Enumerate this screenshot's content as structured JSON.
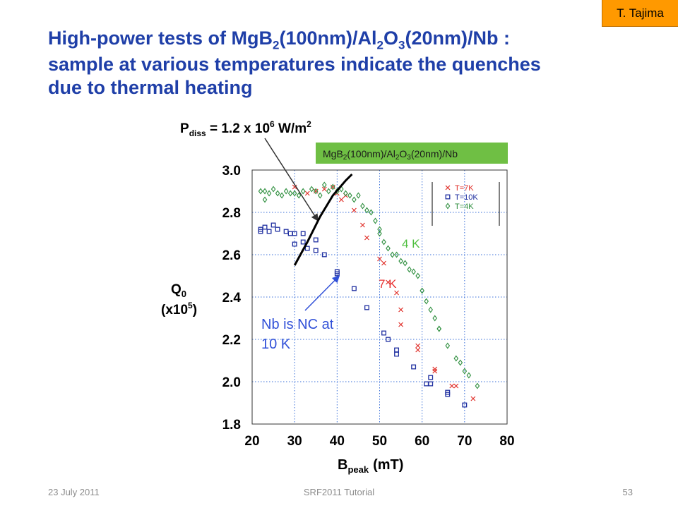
{
  "slide": {
    "author_tag": "T. Tajima",
    "title": {
      "line1_a": "High-power tests of MgB",
      "line1_sub1": "2",
      "line1_b": "(100nm)/Al",
      "line1_sub2": "2",
      "line1_c": "O",
      "line1_sub3": "3",
      "line1_d": "(20nm)/Nb :",
      "line2": "sample at various temperatures indicate the quenches",
      "line3": "due to thermal heating"
    },
    "footer": {
      "date": "23 July 2011",
      "event": "SRF2011 Tutorial",
      "page": "53"
    }
  },
  "colors": {
    "title": "#1f3fa8",
    "tag_bg": "#ff9900",
    "legend_box_bg": "#6fbf44",
    "series_7k": "#e0302a",
    "series_10k": "#1f2fa0",
    "series_4k": "#2f8f3f",
    "grid": "#3a6fd8",
    "annotation_blue": "#3050d8",
    "annotation_green": "#4fbf3f",
    "annotation_red": "#e83030"
  },
  "chart_data": {
    "type": "scatter",
    "x_range": [
      20,
      80
    ],
    "y_range": [
      1.8,
      3.0
    ],
    "x_ticks": [
      "20",
      "30",
      "40",
      "50",
      "60",
      "70",
      "80"
    ],
    "y_ticks": [
      "1.8",
      "2.0",
      "2.2",
      "2.4",
      "2.6",
      "2.8",
      "3.0"
    ],
    "grid": true,
    "xlabel": {
      "main": "B",
      "sub": "peak",
      "units": "(mT)"
    },
    "ylabel": {
      "line1_main": "Q",
      "line1_sub": "0",
      "line2_main": "(x10",
      "line2_sup": "5",
      "line2_end": ")"
    },
    "sample_label": {
      "a": "MgB",
      "a_sub": "2",
      "b": "(100nm)/Al",
      "b_sub": "2",
      "c": "O",
      "c_sub": "3",
      "d": "(20nm)/Nb"
    },
    "legend_position": "top-right",
    "series": [
      {
        "name": "T=7K",
        "marker": "x",
        "color": "#e0302a",
        "points": [
          [
            30,
            2.92
          ],
          [
            33,
            2.89
          ],
          [
            35,
            2.9
          ],
          [
            37,
            2.91
          ],
          [
            39,
            2.92
          ],
          [
            40,
            2.89
          ],
          [
            41,
            2.86
          ],
          [
            42,
            2.88
          ],
          [
            44,
            2.81
          ],
          [
            46,
            2.74
          ],
          [
            47,
            2.68
          ],
          [
            50,
            2.58
          ],
          [
            51,
            2.56
          ],
          [
            52,
            2.47
          ],
          [
            54,
            2.42
          ],
          [
            55,
            2.34
          ],
          [
            55,
            2.27
          ],
          [
            59,
            2.17
          ],
          [
            59,
            2.15
          ],
          [
            63,
            2.06
          ],
          [
            63,
            2.05
          ],
          [
            67,
            1.98
          ],
          [
            68,
            1.98
          ],
          [
            72,
            1.92
          ]
        ]
      },
      {
        "name": "T=10K",
        "marker": "square",
        "color": "#1f2fa0",
        "points": [
          [
            22,
            2.72
          ],
          [
            22,
            2.71
          ],
          [
            23,
            2.73
          ],
          [
            24,
            2.71
          ],
          [
            25,
            2.74
          ],
          [
            26,
            2.72
          ],
          [
            28,
            2.71
          ],
          [
            29,
            2.7
          ],
          [
            30,
            2.7
          ],
          [
            30,
            2.65
          ],
          [
            32,
            2.7
          ],
          [
            32,
            2.66
          ],
          [
            33,
            2.63
          ],
          [
            35,
            2.67
          ],
          [
            35,
            2.62
          ],
          [
            37,
            2.6
          ],
          [
            40,
            2.52
          ],
          [
            40,
            2.51
          ],
          [
            44,
            2.44
          ],
          [
            47,
            2.35
          ],
          [
            51,
            2.23
          ],
          [
            52,
            2.2
          ],
          [
            54,
            2.15
          ],
          [
            54,
            2.13
          ],
          [
            58,
            2.07
          ],
          [
            61,
            1.99
          ],
          [
            62,
            2.02
          ],
          [
            62,
            1.99
          ],
          [
            66,
            1.95
          ],
          [
            66,
            1.94
          ],
          [
            70,
            1.89
          ]
        ]
      },
      {
        "name": "T=4K",
        "marker": "diamond",
        "color": "#2f8f3f",
        "points": [
          [
            22,
            2.9
          ],
          [
            23,
            2.9
          ],
          [
            23,
            2.86
          ],
          [
            24,
            2.89
          ],
          [
            25,
            2.91
          ],
          [
            26,
            2.89
          ],
          [
            27,
            2.88
          ],
          [
            28,
            2.9
          ],
          [
            29,
            2.89
          ],
          [
            30,
            2.89
          ],
          [
            31,
            2.88
          ],
          [
            32,
            2.9
          ],
          [
            34,
            2.91
          ],
          [
            35,
            2.9
          ],
          [
            36,
            2.88
          ],
          [
            37,
            2.93
          ],
          [
            38,
            2.9
          ],
          [
            39,
            2.92
          ],
          [
            40,
            2.9
          ],
          [
            41,
            2.91
          ],
          [
            42,
            2.89
          ],
          [
            43,
            2.88
          ],
          [
            44,
            2.86
          ],
          [
            45,
            2.88
          ],
          [
            46,
            2.83
          ],
          [
            47,
            2.81
          ],
          [
            48,
            2.8
          ],
          [
            49,
            2.76
          ],
          [
            50,
            2.72
          ],
          [
            50,
            2.7
          ],
          [
            51,
            2.66
          ],
          [
            52,
            2.63
          ],
          [
            53,
            2.6
          ],
          [
            54,
            2.6
          ],
          [
            55,
            2.57
          ],
          [
            56,
            2.56
          ],
          [
            57,
            2.53
          ],
          [
            58,
            2.52
          ],
          [
            59,
            2.5
          ],
          [
            60,
            2.43
          ],
          [
            61,
            2.38
          ],
          [
            62,
            2.34
          ],
          [
            63,
            2.3
          ],
          [
            64,
            2.25
          ],
          [
            64,
            2.25
          ],
          [
            66,
            2.17
          ],
          [
            68,
            2.11
          ],
          [
            69,
            2.09
          ],
          [
            70,
            2.05
          ],
          [
            71,
            2.03
          ],
          [
            73,
            1.98
          ]
        ]
      }
    ],
    "annotations": {
      "pdiss": {
        "main": "P",
        "sub": "diss",
        "rest": " = 1.2 x 10",
        "sup": "6",
        "rest2": " W/m",
        "sup2": "2"
      },
      "label_4k": "4 K",
      "label_7k": "7 K",
      "nb_nc_line1": "Nb is NC at",
      "nb_nc_line2": "10 K",
      "quench_curve": [
        [
          30,
          2.55
        ],
        [
          33,
          2.66
        ],
        [
          36,
          2.78
        ],
        [
          39,
          2.88
        ],
        [
          42,
          2.95
        ],
        [
          43.5,
          2.98
        ]
      ],
      "pdiss_arrow_target": [
        35.5,
        2.76
      ],
      "nb_arrow_target": [
        40.5,
        2.5
      ]
    }
  }
}
